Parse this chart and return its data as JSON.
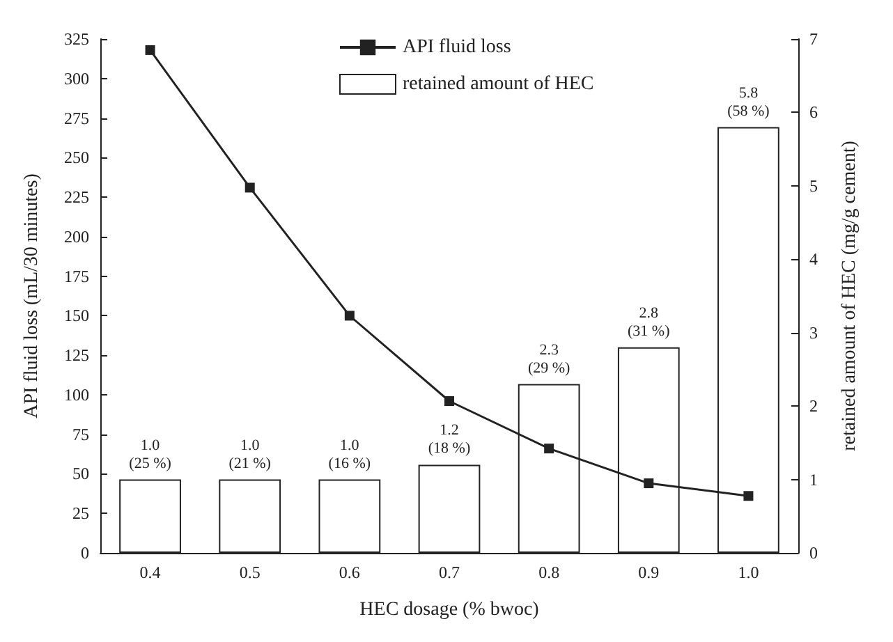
{
  "chart_data": {
    "type": "bar",
    "xlabel": "HEC dosage (% bwoc)",
    "ylabel": "API fluid loss (mL/30 minutes)",
    "y2label": "retained amount of HEC (mg/g cement)",
    "categories": [
      "0.4",
      "0.5",
      "0.6",
      "0.7",
      "0.8",
      "0.9",
      "1.0"
    ],
    "series": [
      {
        "name": "API fluid loss",
        "type": "line",
        "color": "#222222",
        "marker": "square",
        "values": [
          318,
          231,
          150,
          96,
          66,
          44,
          36
        ]
      },
      {
        "name": "retained amount of HEC",
        "axis": "y2",
        "color": "#ffffff",
        "values": [
          1.0,
          1.0,
          1.0,
          1.2,
          2.3,
          2.8,
          5.8
        ],
        "value_labels": [
          "1.0\n(25 %)",
          "1.0\n(21 %)",
          "1.0\n(16 %)",
          "1.2\n(18 %)",
          "2.3\n(29 %)",
          "2.8\n(31 %)",
          "5.8\n(58 %)"
        ]
      }
    ],
    "ylim": [
      0,
      325
    ],
    "yticks": [
      0,
      25,
      50,
      75,
      100,
      125,
      150,
      175,
      200,
      225,
      250,
      275,
      300,
      325
    ],
    "y2lim": [
      0,
      7
    ],
    "y2ticks": [
      0,
      1,
      2,
      3,
      4,
      5,
      6,
      7
    ],
    "legend": "top",
    "grid": false
  }
}
